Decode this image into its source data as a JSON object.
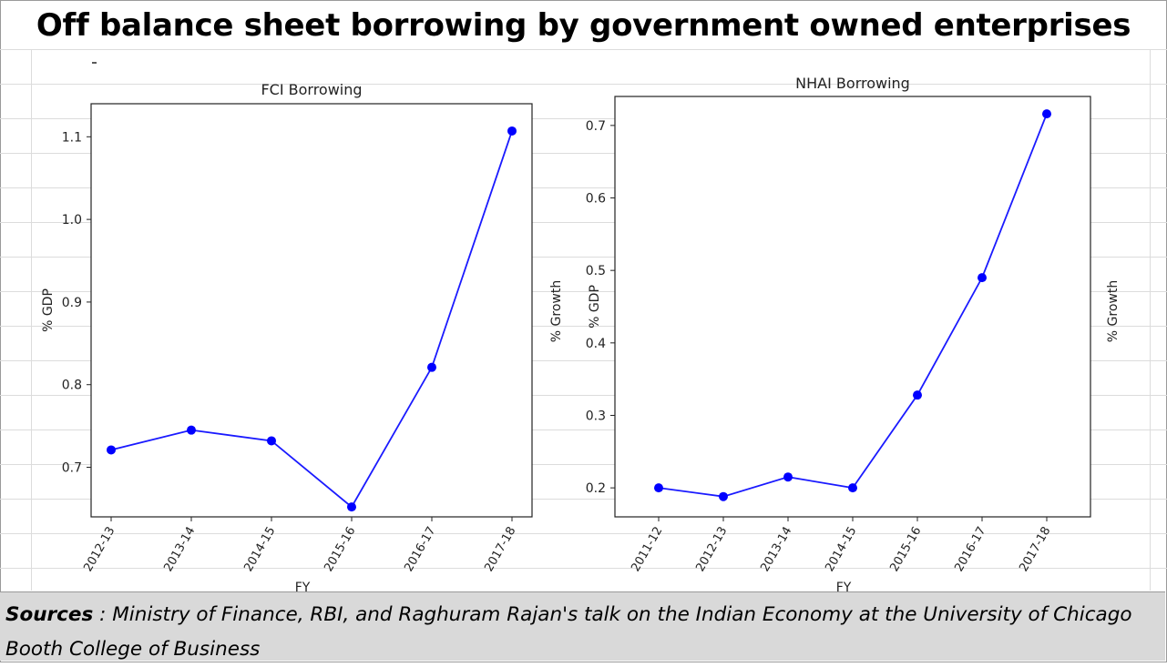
{
  "title": "Off balance sheet borrowing by government owned enterprises",
  "sources": {
    "label": "Sources",
    "separator": " : ",
    "text": "Ministry of Finance, RBI, and Raghuram Rajan's talk on the Indian Economy at the University of Chicago Booth College of Business"
  },
  "chart_data": [
    {
      "type": "line",
      "title": "FCI Borrowing",
      "ylabel": "% GDP",
      "ylabel_right": "% Growth",
      "xlabel": "FY",
      "categories": [
        "2012-13",
        "2013-14",
        "2014-15",
        "2015-16",
        "2016-17",
        "2017-18"
      ],
      "values": [
        0.721,
        0.745,
        0.732,
        0.652,
        0.821,
        1.107
      ],
      "ylim": [
        0.64,
        1.14
      ],
      "yticks": [
        0.7,
        0.8,
        0.9,
        1.0,
        1.1
      ],
      "ytick_labels": [
        "0.7",
        "0.8",
        "0.9",
        "1.0",
        "1.1"
      ],
      "color": "#1a1aff",
      "grid": false
    },
    {
      "type": "line",
      "title": "NHAI Borrowing",
      "ylabel": "% GDP",
      "ylabel_right": "% Growth",
      "xlabel": "FY",
      "categories": [
        "2011-12",
        "2012-13",
        "2013-14",
        "2014-15",
        "2015-16",
        "2016-17",
        "2017-18"
      ],
      "values": [
        0.2,
        0.188,
        0.215,
        0.2,
        0.328,
        0.49,
        0.716
      ],
      "ylim": [
        0.16,
        0.74
      ],
      "yticks": [
        0.2,
        0.3,
        0.4,
        0.5,
        0.6,
        0.7
      ],
      "ytick_labels": [
        "0.2",
        "0.3",
        "0.4",
        "0.5",
        "0.6",
        "0.7"
      ],
      "color": "#1a1aff",
      "grid": false
    }
  ]
}
